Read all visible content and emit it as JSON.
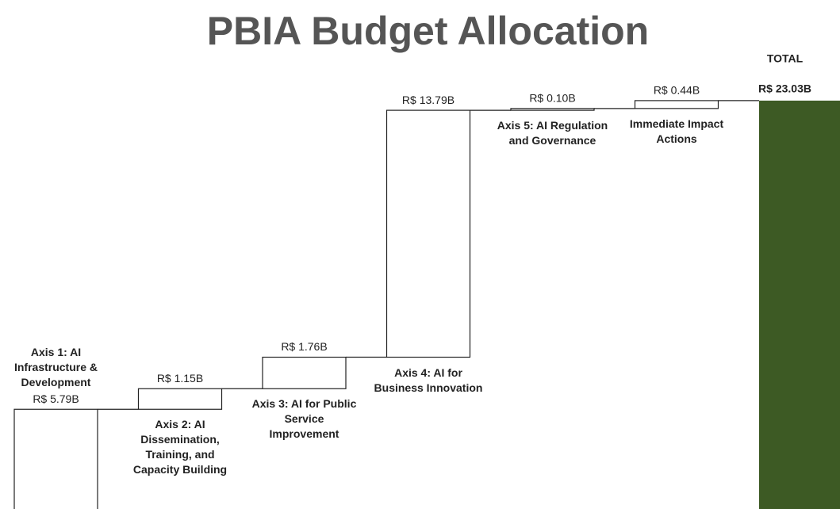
{
  "chart_data": {
    "type": "waterfall",
    "title": "PBIA Budget Allocation",
    "categories": [
      "Axis 1: AI Infrastructure & Development",
      "Axis 2: AI Dissemination, Training, and Capacity Building",
      "Axis 3: AI for Public Service Improvement",
      "Axis 4: AI for Business Innovation",
      "Axis 5: AI Regulation and Governance",
      "Immediate Impact Actions"
    ],
    "values": [
      5.79,
      1.15,
      1.76,
      13.79,
      0.1,
      0.44
    ],
    "value_labels": [
      "R$ 5.79B",
      "R$ 1.15B",
      "R$ 1.76B",
      "R$ 13.79B",
      "R$ 0.10B",
      "R$ 0.44B"
    ],
    "color": "#ffffff",
    "total": {
      "label": "TOTAL",
      "value": 23.03,
      "value_label": "R$ 23.03B",
      "color": "#3d5a24"
    },
    "ylim": [
      0,
      24
    ]
  }
}
